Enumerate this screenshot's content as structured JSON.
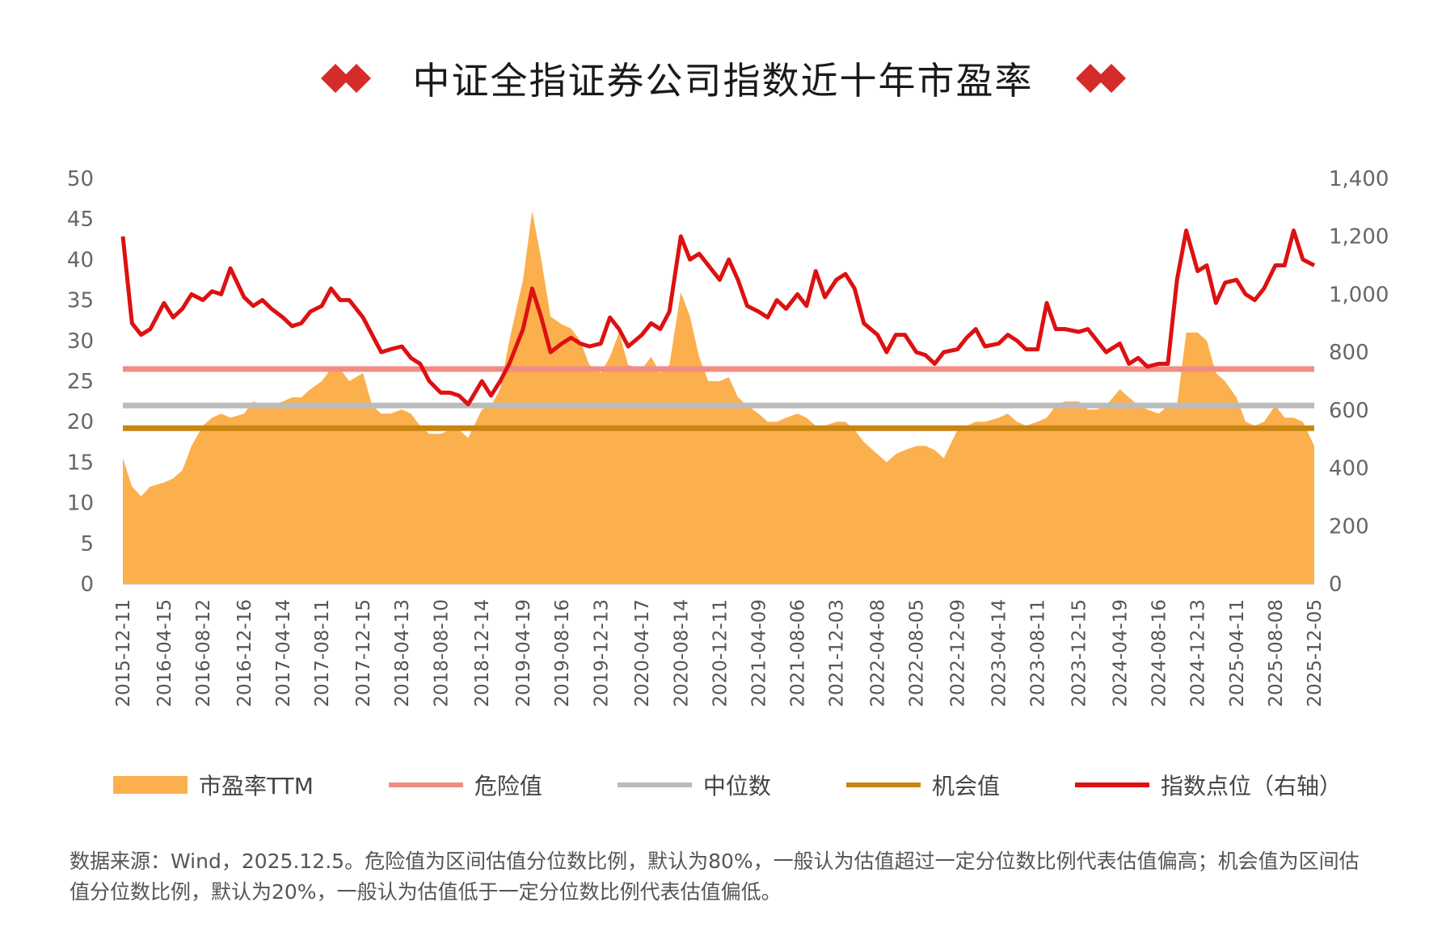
{
  "title": "中证全指证券公司指数近十年市盈率",
  "colors": {
    "pe_area": "#FBB04D",
    "danger": "#F08C84",
    "median": "#BBBBBB",
    "opportunity": "#C98512",
    "index_line": "#DD1111",
    "title_diamond": "#D42B2B"
  },
  "chart_data": {
    "type": "area",
    "left_axis": {
      "ylim": [
        0,
        50
      ],
      "ticks": [
        "0",
        "5",
        "10",
        "15",
        "20",
        "25",
        "30",
        "35",
        "40",
        "45",
        "50"
      ]
    },
    "right_axis": {
      "ylim": [
        0,
        1400
      ],
      "ticks": [
        "0",
        "200",
        "400",
        "600",
        "800",
        "1,000",
        "1,200",
        "1,400"
      ]
    },
    "x_tick_labels": [
      "2015-12-11",
      "2016-04-15",
      "2016-08-12",
      "2016-12-16",
      "2017-04-14",
      "2017-08-11",
      "2017-12-15",
      "2018-04-13",
      "2018-08-10",
      "2018-12-14",
      "2019-04-19",
      "2019-08-16",
      "2019-12-13",
      "2020-04-17",
      "2020-08-14",
      "2020-12-11",
      "2021-04-09",
      "2021-08-06",
      "2021-12-03",
      "2022-04-08",
      "2022-08-05",
      "2022-12-09",
      "2023-04-14",
      "2023-08-11",
      "2023-12-15",
      "2024-04-19",
      "2024-08-16",
      "2024-12-13",
      "2025-04-11",
      "2025-08-08",
      "2025-12-05"
    ],
    "x": [
      "2015-12-11",
      "2016-01-08",
      "2016-02-05",
      "2016-03-04",
      "2016-04-15",
      "2016-05-13",
      "2016-06-10",
      "2016-07-08",
      "2016-08-12",
      "2016-09-09",
      "2016-10-07",
      "2016-11-04",
      "2016-12-16",
      "2017-01-13",
      "2017-02-10",
      "2017-03-10",
      "2017-04-14",
      "2017-05-12",
      "2017-06-09",
      "2017-07-07",
      "2017-08-11",
      "2017-09-08",
      "2017-10-06",
      "2017-11-03",
      "2017-12-15",
      "2018-01-12",
      "2018-02-09",
      "2018-03-09",
      "2018-04-13",
      "2018-05-11",
      "2018-06-08",
      "2018-07-06",
      "2018-08-10",
      "2018-09-07",
      "2018-10-05",
      "2018-11-02",
      "2018-12-14",
      "2019-01-11",
      "2019-02-08",
      "2019-03-08",
      "2019-04-19",
      "2019-05-17",
      "2019-06-14",
      "2019-07-12",
      "2019-08-16",
      "2019-09-13",
      "2019-10-11",
      "2019-11-08",
      "2019-12-13",
      "2020-01-10",
      "2020-02-07",
      "2020-03-06",
      "2020-04-17",
      "2020-05-15",
      "2020-06-12",
      "2020-07-10",
      "2020-08-14",
      "2020-09-11",
      "2020-10-09",
      "2020-11-06",
      "2020-12-11",
      "2021-01-08",
      "2021-02-05",
      "2021-03-05",
      "2021-04-09",
      "2021-05-07",
      "2021-06-04",
      "2021-07-02",
      "2021-08-06",
      "2021-09-03",
      "2021-10-01",
      "2021-10-29",
      "2021-12-03",
      "2021-12-31",
      "2022-01-28",
      "2022-02-25",
      "2022-04-08",
      "2022-05-06",
      "2022-06-03",
      "2022-07-01",
      "2022-08-05",
      "2022-09-02",
      "2022-09-30",
      "2022-10-28",
      "2022-12-09",
      "2023-01-06",
      "2023-02-03",
      "2023-03-03",
      "2023-04-14",
      "2023-05-12",
      "2023-06-09",
      "2023-07-07",
      "2023-08-11",
      "2023-09-08",
      "2023-10-06",
      "2023-11-03",
      "2023-12-15",
      "2024-01-12",
      "2024-02-09",
      "2024-03-08",
      "2024-04-19",
      "2024-05-17",
      "2024-06-14",
      "2024-07-12",
      "2024-08-16",
      "2024-09-13",
      "2024-10-11",
      "2024-11-08",
      "2024-12-13",
      "2025-01-10",
      "2025-02-07",
      "2025-03-07",
      "2025-04-11",
      "2025-05-09",
      "2025-06-06",
      "2025-07-04",
      "2025-08-08",
      "2025-09-05",
      "2025-10-03",
      "2025-10-31",
      "2025-12-05"
    ],
    "series": [
      {
        "name": "市盈率TTM",
        "axis": "left",
        "type": "area",
        "values": [
          15.5,
          12,
          10.8,
          12,
          12.5,
          13,
          14,
          17,
          19.5,
          20.5,
          21,
          20.5,
          21,
          22.5,
          22,
          22,
          22.5,
          23,
          23,
          24,
          25,
          26.5,
          26.5,
          25,
          26,
          22,
          21,
          21,
          21.5,
          21,
          19.5,
          18.5,
          18.5,
          19,
          19,
          18,
          21.5,
          22,
          24,
          30,
          37.5,
          46,
          40,
          33,
          32,
          31.5,
          30,
          27,
          26,
          28,
          31,
          27,
          26.5,
          28,
          26,
          27,
          36,
          33,
          28,
          25,
          25,
          25.5,
          23,
          22,
          21,
          20,
          20,
          20.5,
          21,
          20.5,
          19.5,
          19.5,
          20,
          20,
          19,
          17.5,
          16,
          15,
          16,
          16.5,
          17,
          17,
          16.5,
          15.5,
          19,
          19.5,
          20,
          20,
          20.5,
          21,
          20,
          19.5,
          20,
          20.5,
          22,
          22.5,
          22.5,
          21.5,
          21.5,
          22,
          24,
          23,
          22,
          21.5,
          21,
          22,
          22,
          31,
          31,
          30,
          26,
          25,
          23,
          20,
          19.5,
          20,
          22,
          20.5,
          20.5,
          20,
          17
        ]
      },
      {
        "name": "指数点位（右轴）",
        "axis": "right",
        "type": "line",
        "values": [
          1200,
          900,
          860,
          880,
          970,
          920,
          950,
          1000,
          980,
          1010,
          1000,
          1090,
          990,
          960,
          980,
          950,
          920,
          890,
          900,
          940,
          960,
          1020,
          980,
          980,
          920,
          860,
          800,
          810,
          820,
          780,
          760,
          700,
          660,
          660,
          650,
          620,
          700,
          650,
          700,
          760,
          880,
          1020,
          920,
          800,
          830,
          850,
          830,
          820,
          830,
          920,
          880,
          820,
          860,
          900,
          880,
          940,
          1200,
          1120,
          1140,
          1100,
          1050,
          1120,
          1050,
          960,
          940,
          920,
          980,
          950,
          1000,
          960,
          1080,
          990,
          1050,
          1070,
          1020,
          900,
          860,
          800,
          860,
          860,
          800,
          790,
          760,
          800,
          810,
          850,
          880,
          820,
          830,
          860,
          840,
          810,
          810,
          970,
          880,
          880,
          870,
          880,
          840,
          800,
          830,
          760,
          780,
          750,
          760,
          760,
          1050,
          1220,
          1080,
          1100,
          970,
          1040,
          1050,
          1000,
          980,
          1020,
          1100,
          1100,
          1220,
          1120,
          1100
        ]
      }
    ],
    "reference_lines": [
      {
        "name": "危险值",
        "value": 26.5,
        "axis": "left"
      },
      {
        "name": "中位数",
        "value": 22,
        "axis": "left"
      },
      {
        "name": "机会值",
        "value": 19.2,
        "axis": "left"
      }
    ],
    "legend_position": "bottom",
    "grid": false
  },
  "legend": {
    "pe": "市盈率TTM",
    "danger": "危险值",
    "median": "中位数",
    "opportunity": "机会值",
    "index": "指数点位（右轴）"
  },
  "note": "数据来源：Wind，2025.12.5。危险值为区间估值分位数比例，默认为80%，一般认为估值超过一定分位数比例代表估值偏高；机会值为区间估值分位数比例，默认为20%，一般认为估值低于一定分位数比例代表估值偏低。"
}
